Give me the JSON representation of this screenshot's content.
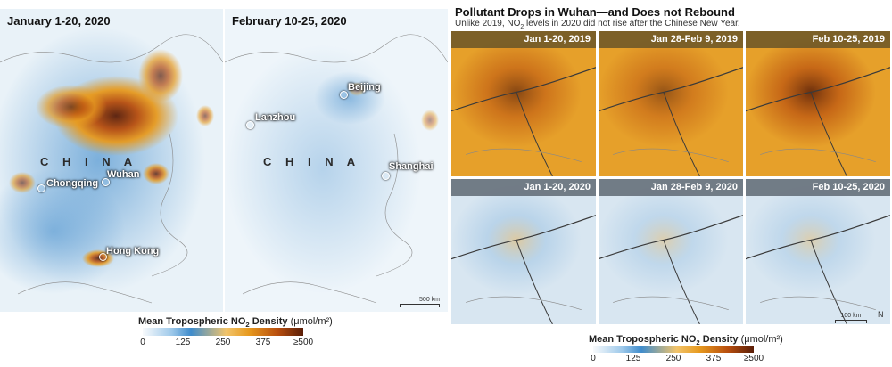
{
  "left_maps": [
    {
      "title": "January 1-20, 2020",
      "country_label": "C H I N A",
      "cities": [
        "Chongqing",
        "Wuhan",
        "Hong Kong"
      ]
    },
    {
      "title": "February 10-25, 2020",
      "country_label": "C H I N A",
      "cities": [
        "Beijing",
        "Lanzhou",
        "Shanghai"
      ],
      "scale": "500 km"
    }
  ],
  "left_legend": {
    "title_prefix": "Mean Tropospheric NO",
    "title_sub": "2",
    "title_suffix": " Density ",
    "units": "(μmol/m²)",
    "ticks": [
      "0",
      "125",
      "250",
      "375",
      "≥500"
    ]
  },
  "right": {
    "title": "Pollutant Drops in Wuhan—and Does not Rebound",
    "subtitle_prefix": "Unlike 2019, NO",
    "subtitle_sub": "2",
    "subtitle_suffix": " levels in 2020 did not rise after the Chinese New Year.",
    "tiles": [
      {
        "label": "Jan 1-20, 2019",
        "year": 2019,
        "intensity": 0.55
      },
      {
        "label": "Jan 28-Feb 9, 2019",
        "year": 2019,
        "intensity": 0.4
      },
      {
        "label": "Feb 10-25, 2019",
        "year": 2019,
        "intensity": 0.8
      },
      {
        "label": "Jan 1-20, 2020",
        "year": 2020,
        "intensity": 0.15
      },
      {
        "label": "Jan 28-Feb 9, 2020",
        "year": 2020,
        "intensity": 0.05
      },
      {
        "label": "Feb 10-25, 2020",
        "year": 2020,
        "intensity": 0.05
      }
    ],
    "scale": "100 km",
    "north": "N"
  },
  "right_legend": {
    "title_prefix": "Mean Tropospheric NO",
    "title_sub": "2",
    "title_suffix": " Density ",
    "units": "(μmol/m²)",
    "ticks": [
      "0",
      "125",
      "250",
      "375",
      "≥500"
    ]
  },
  "colors": {
    "low": "#e9f2f8",
    "mid_blue": "#6fa8d8",
    "orange": "#e6a02a",
    "dark": "#5a1e08",
    "label_2019": "#6a5528",
    "label_2020": "#5f6973"
  }
}
